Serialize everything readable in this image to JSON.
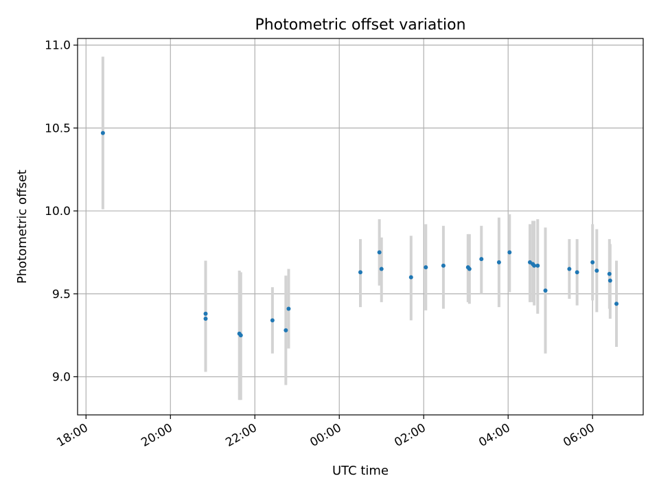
{
  "chart_data": {
    "type": "scatter",
    "title": "Photometric offset variation",
    "xlabel": "UTC time",
    "ylabel": "Photometric offset",
    "x_type": "time",
    "x_ticks": [
      "18:00",
      "20:00",
      "22:00",
      "00:00",
      "02:00",
      "04:00",
      "06:00"
    ],
    "xlim": [
      "17:48",
      "07:12"
    ],
    "ylim": [
      8.77,
      11.04
    ],
    "y_ticks": [
      "9.0",
      "9.5",
      "10.0",
      "10.5",
      "11.0"
    ],
    "grid": true,
    "colors": {
      "marker": "#1f77b4",
      "errorbar": "#d3d3d3",
      "grid": "#b0b0b0"
    },
    "points": [
      {
        "x": "18:24",
        "y": 10.47,
        "lo": 10.01,
        "hi": 10.93
      },
      {
        "x": "20:50",
        "y": 9.38,
        "lo": 9.03,
        "hi": 9.7
      },
      {
        "x": "20:50",
        "y": 9.35,
        "lo": 9.03,
        "hi": 9.7
      },
      {
        "x": "21:38",
        "y": 9.26,
        "lo": 8.86,
        "hi": 9.64
      },
      {
        "x": "21:40",
        "y": 9.25,
        "lo": 8.86,
        "hi": 9.63
      },
      {
        "x": "22:25",
        "y": 9.34,
        "lo": 9.14,
        "hi": 9.54
      },
      {
        "x": "22:44",
        "y": 9.28,
        "lo": 8.95,
        "hi": 9.61
      },
      {
        "x": "22:48",
        "y": 9.41,
        "lo": 9.17,
        "hi": 9.65
      },
      {
        "x": "00:30",
        "y": 9.63,
        "lo": 9.42,
        "hi": 9.83
      },
      {
        "x": "00:57",
        "y": 9.75,
        "lo": 9.55,
        "hi": 9.95
      },
      {
        "x": "01:00",
        "y": 9.65,
        "lo": 9.45,
        "hi": 9.84
      },
      {
        "x": "01:42",
        "y": 9.6,
        "lo": 9.34,
        "hi": 9.85
      },
      {
        "x": "02:03",
        "y": 9.66,
        "lo": 9.4,
        "hi": 9.92
      },
      {
        "x": "02:28",
        "y": 9.67,
        "lo": 9.41,
        "hi": 9.91
      },
      {
        "x": "03:03",
        "y": 9.66,
        "lo": 9.45,
        "hi": 9.86
      },
      {
        "x": "03:05",
        "y": 9.65,
        "lo": 9.44,
        "hi": 9.86
      },
      {
        "x": "03:22",
        "y": 9.71,
        "lo": 9.5,
        "hi": 9.91
      },
      {
        "x": "03:47",
        "y": 9.69,
        "lo": 9.42,
        "hi": 9.96
      },
      {
        "x": "04:02",
        "y": 9.75,
        "lo": 9.51,
        "hi": 9.98
      },
      {
        "x": "04:31",
        "y": 9.69,
        "lo": 9.45,
        "hi": 9.92
      },
      {
        "x": "04:35",
        "y": 9.68,
        "lo": 9.45,
        "hi": 9.94
      },
      {
        "x": "04:37",
        "y": 9.67,
        "lo": 9.43,
        "hi": 9.94
      },
      {
        "x": "04:42",
        "y": 9.67,
        "lo": 9.38,
        "hi": 9.95
      },
      {
        "x": "04:53",
        "y": 9.52,
        "lo": 9.14,
        "hi": 9.9
      },
      {
        "x": "05:27",
        "y": 9.65,
        "lo": 9.47,
        "hi": 9.83
      },
      {
        "x": "05:38",
        "y": 9.63,
        "lo": 9.43,
        "hi": 9.83
      },
      {
        "x": "06:00",
        "y": 9.69,
        "lo": 9.46,
        "hi": 9.92
      },
      {
        "x": "06:06",
        "y": 9.64,
        "lo": 9.39,
        "hi": 9.89
      },
      {
        "x": "06:24",
        "y": 9.62,
        "lo": 9.41,
        "hi": 9.83
      },
      {
        "x": "06:25",
        "y": 9.58,
        "lo": 9.35,
        "hi": 9.8
      },
      {
        "x": "06:34",
        "y": 9.44,
        "lo": 9.18,
        "hi": 9.7
      }
    ]
  }
}
